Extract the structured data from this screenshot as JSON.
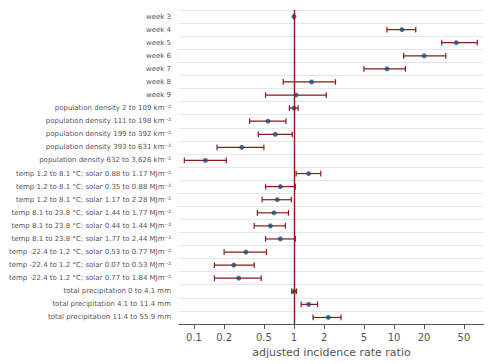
{
  "chart_data": {
    "type": "scatter",
    "orientation": "horizontal",
    "log": "x",
    "xlabel": "adjusted incidence rate ratio",
    "categories": [
      "week 3",
      "week 4",
      "week 5",
      "week 6",
      "week 7",
      "week 8",
      "week 9",
      "population density 2 to 109 km⁻²",
      "population density 111 to 198 km⁻²",
      "population density 199 to 392 km⁻²",
      "population density 393 to 631 km⁻²",
      "population density 632 to 3,626 km⁻²",
      "temp 1.2 to 8.1 °C; solar 0.88 to 1.17 MJm⁻²",
      "temp 1.2 to 8.1 °C; solar 0.35 to 0.88 MJm⁻²",
      "temp 1.2 to 8.1 °C; solar 1.17 to 2.28 MJm⁻²",
      "temp 8.1 to 23.8 °C; solar 1.44 to 1.77 MJm⁻²",
      "temp 8.1 to 23.8 °C; solar 0.44 to 1.44 MJm⁻²",
      "temp 8.1 to 23.8 °C; solar 1.77 to 2.44 MJm⁻²",
      "temp -22.4 to 1.2 °C; solar 0.53 to 0.77 MJm⁻²",
      "temp -22.4 to 1.2 °C; solar 0.07 to 0.53 MJm⁻²",
      "temp -22.4 to 1.2 °C; solar 0.77 to 1.84 MJm⁻²",
      "total precipitation 0 to 4.1 mm",
      "total precipitation 4.1 to 11.4 mm",
      "total precipitation 11.4 to 55.9 mm"
    ],
    "values": [
      1.0,
      12.0,
      42.0,
      20.0,
      8.5,
      1.5,
      1.05,
      1.0,
      0.55,
      0.65,
      0.3,
      0.13,
      1.4,
      0.73,
      0.68,
      0.63,
      0.58,
      0.73,
      0.33,
      0.25,
      0.28,
      1.0,
      1.4,
      2.2
    ],
    "ci_low": [
      1.0,
      8.5,
      30.0,
      12.5,
      5.0,
      0.78,
      0.52,
      0.9,
      0.36,
      0.44,
      0.17,
      0.08,
      1.05,
      0.52,
      0.48,
      0.43,
      0.4,
      0.52,
      0.2,
      0.16,
      0.16,
      0.95,
      1.18,
      1.55
    ],
    "ci_high": [
      1.0,
      16.5,
      68.0,
      33.0,
      13.0,
      2.6,
      2.1,
      1.1,
      0.83,
      0.96,
      0.5,
      0.21,
      1.85,
      1.03,
      0.94,
      0.88,
      0.82,
      1.03,
      0.53,
      0.4,
      0.47,
      1.06,
      1.72,
      2.95
    ],
    "color": "#1f4e79",
    "ci_color": "#8b1a1a",
    "reference_line": {
      "value": 1,
      "color": "#8b1a1a"
    },
    "xlim": [
      0.0707945784384138,
      79.4328234724281
    ],
    "xticks": [
      0.1,
      0.2,
      0.5,
      1,
      2,
      5,
      10,
      20,
      50
    ],
    "grid": false
  }
}
